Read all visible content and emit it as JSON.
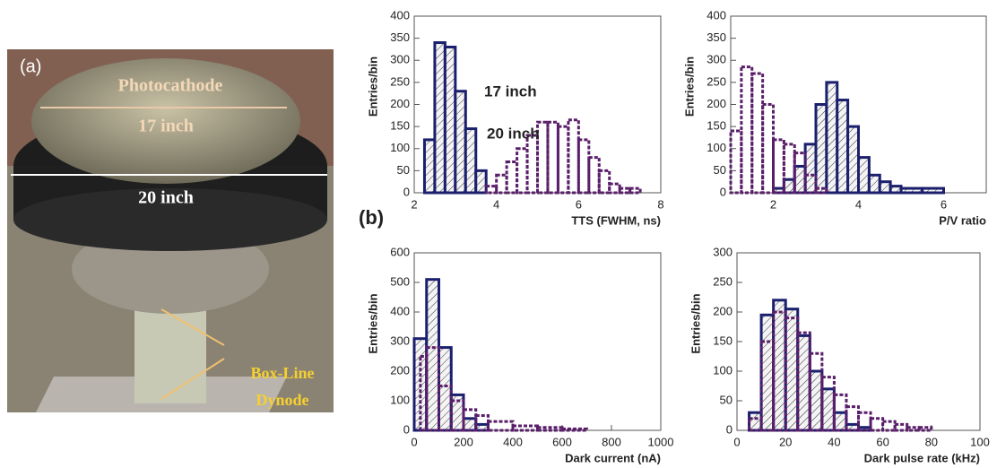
{
  "photo": {
    "label": "(a)",
    "photocathode": "Photocathode",
    "small": "17 inch",
    "large": "20 inch",
    "dynode": [
      "Box-Line",
      "Dynode"
    ]
  },
  "panel_label": "(b)",
  "chart_data": [
    {
      "type": "histogram",
      "ylabel": "Entries/bin",
      "xlabel": "TTS (FWHM, ns)",
      "xlim": [
        2,
        8
      ],
      "xticks": [
        2,
        4,
        6,
        8
      ],
      "ylim": [
        0,
        400
      ],
      "yticks": [
        0,
        50,
        100,
        150,
        200,
        250,
        300,
        350,
        400
      ],
      "annotations": [
        "17 inch",
        "20 inch"
      ],
      "series": [
        {
          "color": "#1a1f6e",
          "hatch": true,
          "dashed": false,
          "bins": [
            2.25,
            2.5,
            2.75,
            3.0,
            3.25,
            3.5,
            3.75
          ],
          "values": [
            120,
            340,
            330,
            230,
            145,
            50
          ]
        },
        {
          "color": "#5a1f6a",
          "hatch": false,
          "dashed": true,
          "bins": [
            3.75,
            4.0,
            4.25,
            4.5,
            4.75,
            5.0,
            5.25,
            5.5,
            5.75,
            6.0,
            6.25,
            6.5,
            6.75,
            7.0,
            7.25,
            7.5
          ],
          "values": [
            15,
            40,
            70,
            100,
            130,
            160,
            160,
            150,
            165,
            120,
            80,
            50,
            20,
            10,
            10
          ]
        }
      ]
    },
    {
      "type": "histogram",
      "ylabel": "Entries/bin",
      "xlabel": "P/V ratio",
      "xlim": [
        1,
        7
      ],
      "xticks": [
        2,
        4,
        6
      ],
      "ylim": [
        0,
        400
      ],
      "yticks": [
        0,
        50,
        100,
        150,
        200,
        250,
        300,
        350,
        400
      ],
      "series": [
        {
          "color": "#1a1f6e",
          "hatch": true,
          "dashed": false,
          "bins": [
            2.0,
            2.25,
            2.5,
            2.75,
            3.0,
            3.25,
            3.5,
            3.75,
            4.0,
            4.25,
            4.5,
            4.75,
            5.0,
            5.5,
            6.0
          ],
          "values": [
            10,
            30,
            60,
            110,
            200,
            250,
            210,
            150,
            80,
            40,
            25,
            15,
            10,
            10
          ]
        },
        {
          "color": "#5a1f6a",
          "hatch": false,
          "dashed": true,
          "bins": [
            1.0,
            1.25,
            1.5,
            1.75,
            2.0,
            2.25,
            2.5,
            2.75,
            3.0,
            3.25
          ],
          "values": [
            140,
            285,
            270,
            200,
            120,
            110,
            90,
            40,
            10
          ]
        }
      ]
    },
    {
      "type": "histogram",
      "ylabel": "Entries/bin",
      "xlabel": "Dark current (nA)",
      "xlim": [
        0,
        1000
      ],
      "xticks": [
        0,
        200,
        400,
        600,
        800,
        1000
      ],
      "ylim": [
        0,
        600
      ],
      "yticks": [
        0,
        100,
        200,
        300,
        400,
        500,
        600
      ],
      "series": [
        {
          "color": "#1a1f6e",
          "hatch": true,
          "dashed": false,
          "bins": [
            0,
            50,
            100,
            150,
            200,
            250,
            300
          ],
          "values": [
            310,
            510,
            280,
            120,
            40,
            20
          ]
        },
        {
          "color": "#5a1f6a",
          "hatch": false,
          "dashed": true,
          "bins": [
            25,
            50,
            100,
            150,
            200,
            250,
            300,
            400,
            500,
            600,
            700
          ],
          "values": [
            250,
            280,
            150,
            100,
            70,
            50,
            30,
            15,
            10,
            5
          ]
        }
      ]
    },
    {
      "type": "histogram",
      "ylabel": "Entries/bin",
      "xlabel": "Dark pulse rate (kHz)",
      "xlim": [
        0,
        100
      ],
      "xticks": [
        0,
        20,
        40,
        60,
        80,
        100
      ],
      "ylim": [
        0,
        300
      ],
      "yticks": [
        0,
        50,
        100,
        150,
        200,
        250,
        300
      ],
      "series": [
        {
          "color": "#1a1f6e",
          "hatch": true,
          "dashed": false,
          "bins": [
            5,
            10,
            15,
            20,
            25,
            30,
            35,
            40,
            45,
            50,
            55
          ],
          "values": [
            30,
            195,
            220,
            205,
            160,
            100,
            70,
            30,
            10,
            5
          ]
        },
        {
          "color": "#5a1f6a",
          "hatch": false,
          "dashed": true,
          "bins": [
            5,
            10,
            15,
            20,
            25,
            30,
            35,
            40,
            45,
            50,
            55,
            60,
            65,
            70,
            75,
            80
          ],
          "values": [
            20,
            150,
            200,
            190,
            165,
            130,
            90,
            60,
            40,
            30,
            20,
            15,
            10,
            5,
            5
          ]
        }
      ]
    }
  ]
}
